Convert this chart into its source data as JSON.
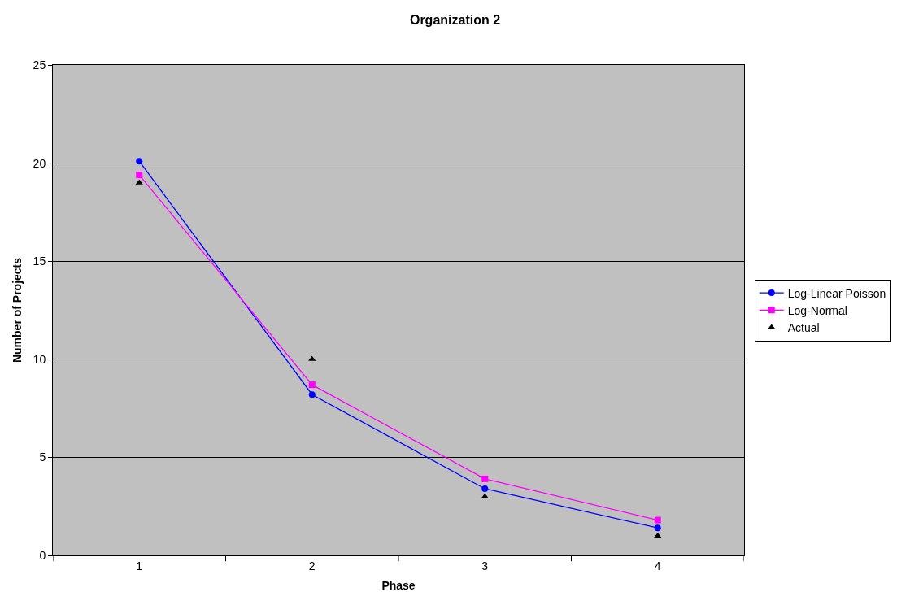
{
  "chart_data": {
    "type": "line",
    "title": "Organization 2",
    "xlabel": "Phase",
    "ylabel": "Number of Projects",
    "categories": [
      "1",
      "2",
      "3",
      "4"
    ],
    "series": [
      {
        "name": "Log-Linear Poisson",
        "color": "#0000ff",
        "marker": "circle",
        "values": [
          20.1,
          8.2,
          3.4,
          1.4
        ]
      },
      {
        "name": "Log-Normal",
        "color": "#ff00ff",
        "marker": "square",
        "values": [
          19.4,
          8.7,
          3.9,
          1.8
        ]
      },
      {
        "name": "Actual",
        "type": "scatter",
        "color": "#000000",
        "marker": "triangle",
        "values": [
          19,
          10,
          3,
          1
        ]
      }
    ],
    "ylim": [
      0,
      25
    ],
    "yticks": [
      0,
      5,
      10,
      15,
      20,
      25
    ],
    "grid": "y",
    "legend": "right"
  }
}
